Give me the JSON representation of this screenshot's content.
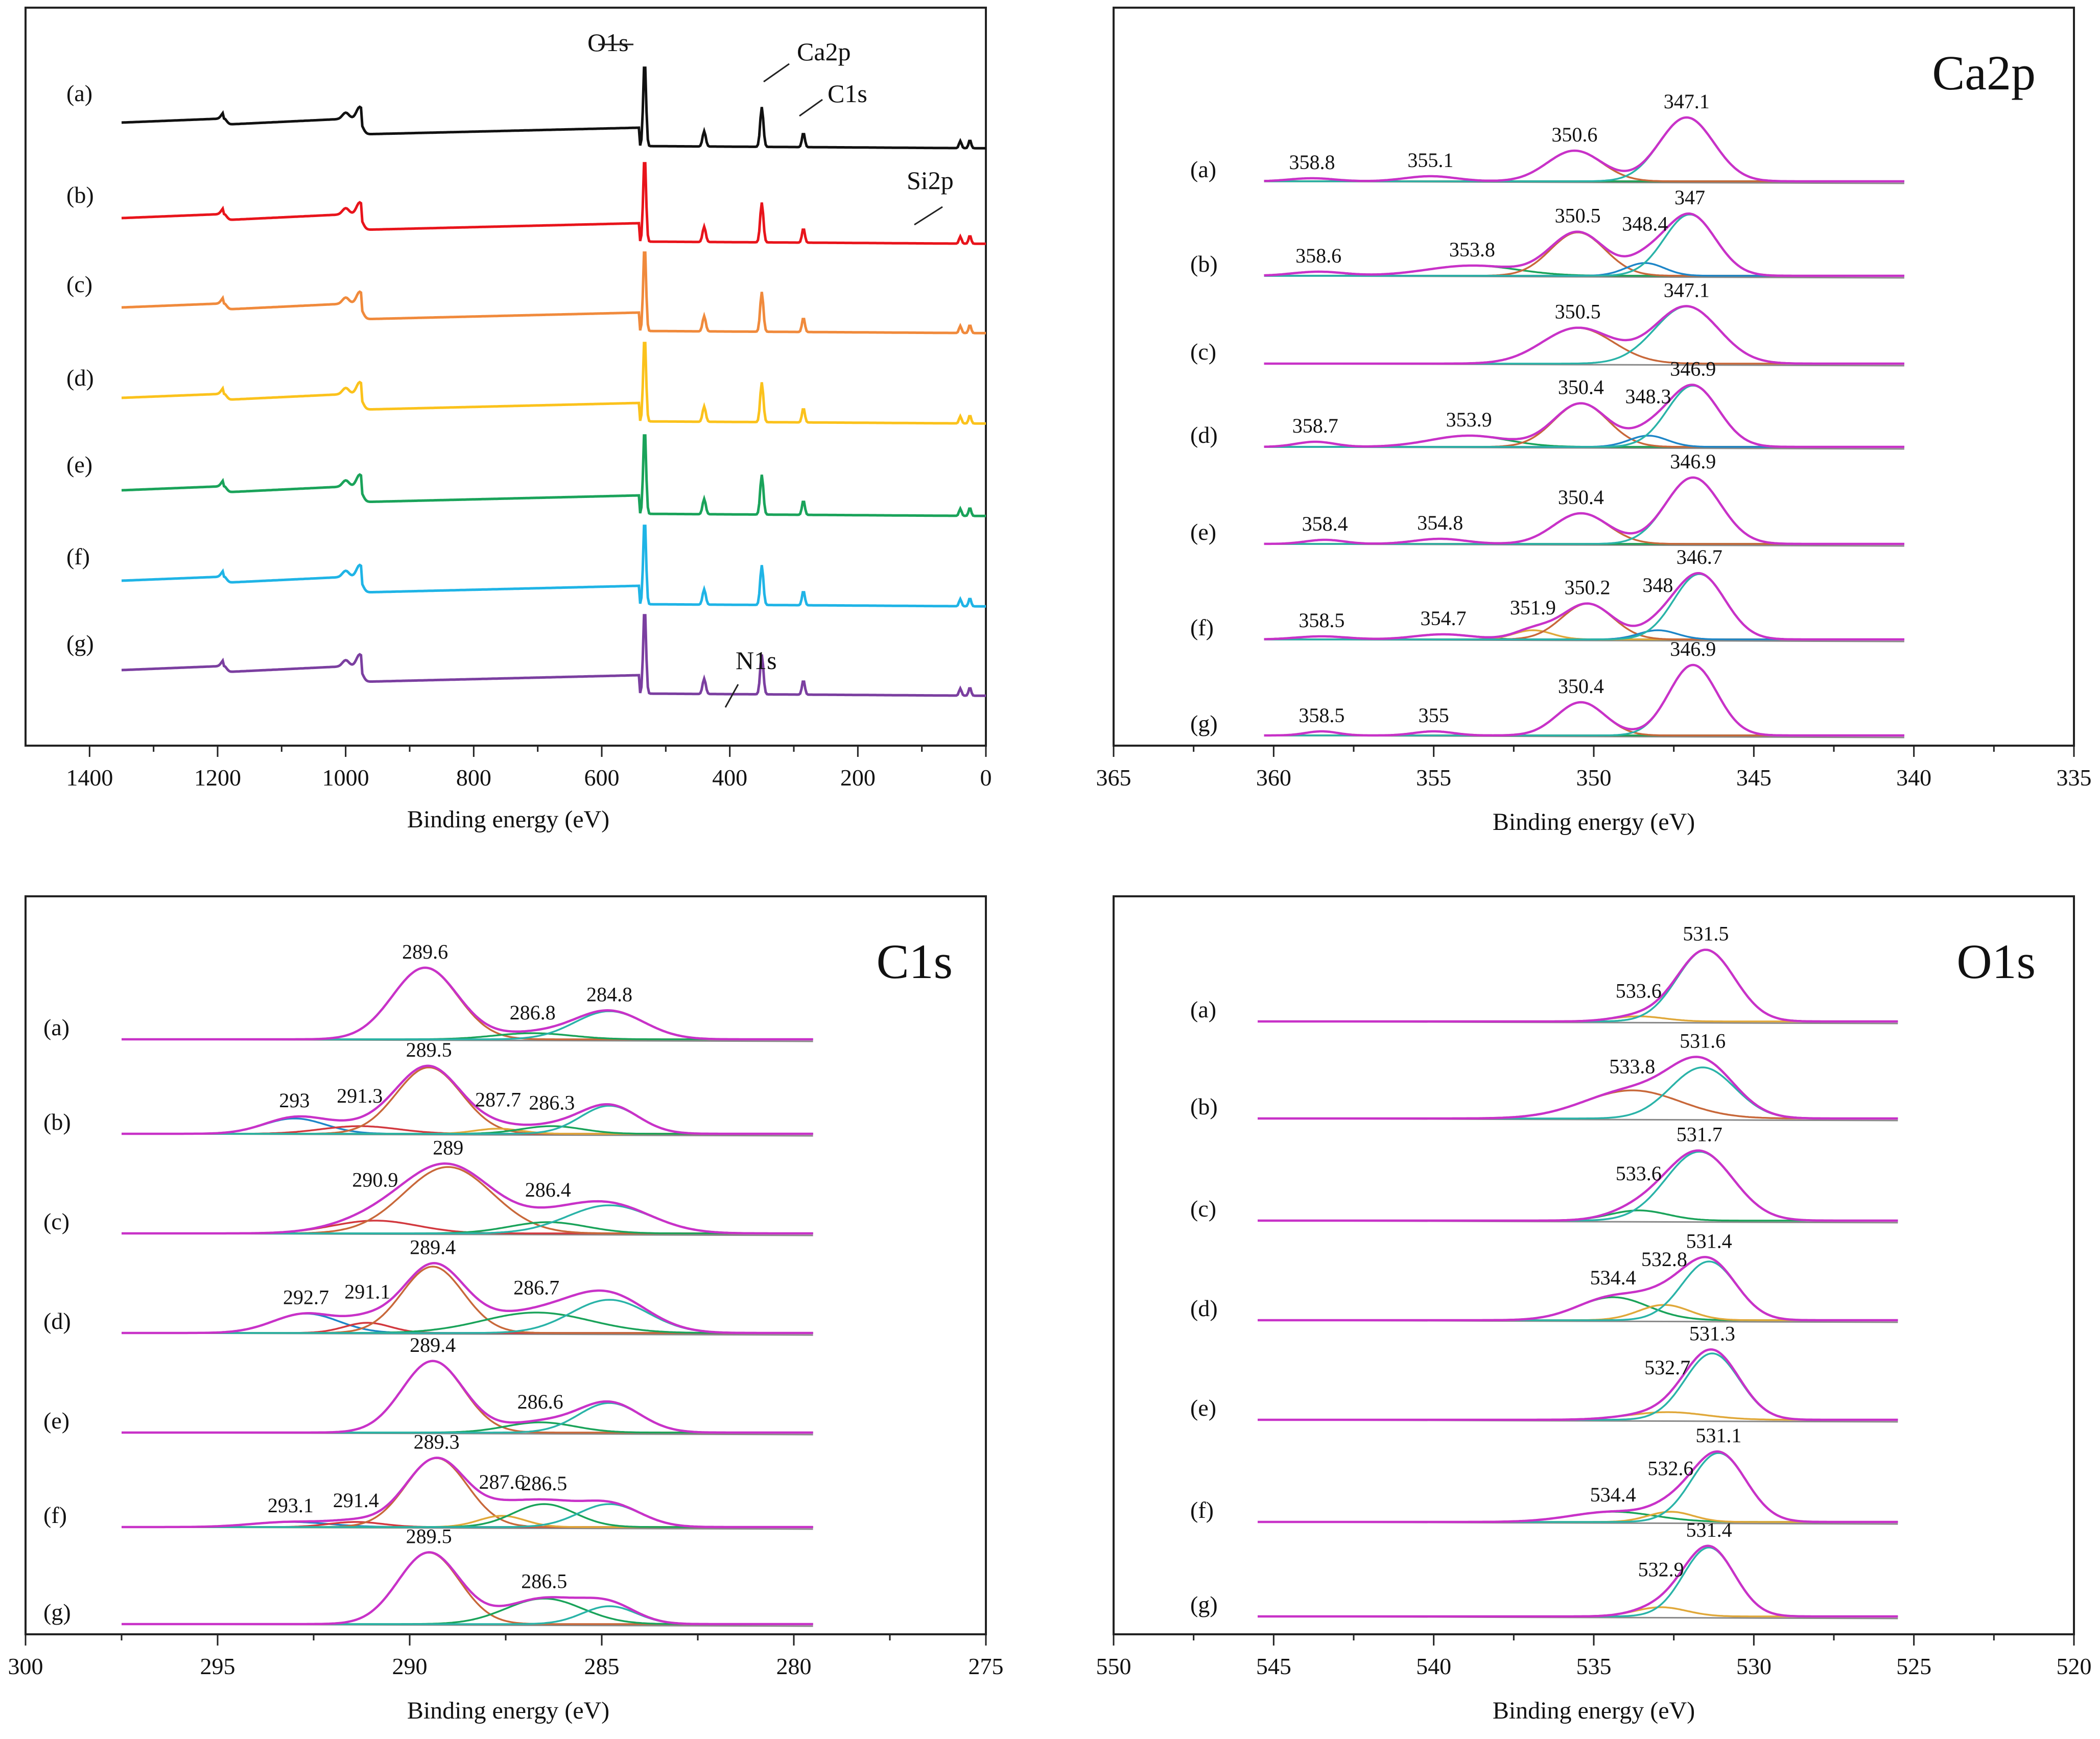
{
  "figure": {
    "xlabel": "Binding energy (eV)",
    "sample_labels": [
      "(a)",
      "(b)",
      "(c)",
      "(d)",
      "(e)",
      "(f)",
      "(g)"
    ],
    "curve_colors": {
      "black": "#111111",
      "red": "#e8141b",
      "orange": "#f08a3c",
      "yellow": "#fbc21c",
      "green": "#1aa35a",
      "cyan": "#1fb4e6",
      "purple": "#7b3fa0",
      "blue_fit": "#1e86c8",
      "env": "#c832c8",
      "brown": "#c8683a",
      "teal": "#2ab3a8",
      "darkred": "#d2393f",
      "gold": "#e0a83a",
      "gray": "#8a8a8a"
    }
  },
  "chart_data": [
    {
      "id": "survey",
      "type": "line",
      "title": "",
      "xlabel": "Binding energy (eV)",
      "xlim": [
        1500,
        0
      ],
      "xticks": [
        1400,
        1200,
        1000,
        800,
        600,
        400,
        200,
        0
      ],
      "series": [
        {
          "name": "(a)",
          "color": "#111111"
        },
        {
          "name": "(b)",
          "color": "#e8141b"
        },
        {
          "name": "(c)",
          "color": "#f08a3c"
        },
        {
          "name": "(d)",
          "color": "#fbc21c"
        },
        {
          "name": "(e)",
          "color": "#1aa35a"
        },
        {
          "name": "(f)",
          "color": "#1fb4e6"
        },
        {
          "name": "(g)",
          "color": "#7b3fa0"
        }
      ],
      "peaks_ev": [
        1190,
        1000,
        978,
        533,
        440,
        350,
        285,
        25
      ],
      "annotations": [
        {
          "text": "O1s",
          "x": 533
        },
        {
          "text": "Ca2p",
          "x": 350
        },
        {
          "text": "C1s",
          "x": 285
        },
        {
          "text": "Si2p",
          "x": 103
        },
        {
          "text": "N1s",
          "x": 400
        }
      ]
    },
    {
      "id": "ca2p",
      "type": "line",
      "title": "Ca2p",
      "xlabel": "Binding energy (eV)",
      "xlim": [
        365,
        335
      ],
      "xticks": [
        365,
        360,
        355,
        350,
        345,
        340,
        335
      ],
      "data_range": [
        360.3,
        340.3
      ],
      "rows": [
        {
          "label": "(a)",
          "peaks": [
            358.8,
            355.1,
            350.6,
            347.1
          ]
        },
        {
          "label": "(b)",
          "peaks": [
            358.6,
            353.8,
            350.5,
            348.4,
            347
          ]
        },
        {
          "label": "(c)",
          "peaks": [
            350.5,
            347.1
          ]
        },
        {
          "label": "(d)",
          "peaks": [
            358.7,
            353.9,
            350.4,
            348.3,
            346.9
          ]
        },
        {
          "label": "(e)",
          "peaks": [
            358.4,
            354.8,
            350.4,
            346.9
          ]
        },
        {
          "label": "(f)",
          "peaks": [
            358.5,
            354.7,
            351.9,
            350.2,
            348,
            346.7
          ]
        },
        {
          "label": "(g)",
          "peaks": [
            358.5,
            355,
            350.4,
            346.9
          ]
        }
      ]
    },
    {
      "id": "c1s",
      "type": "line",
      "title": "C1s",
      "xlabel": "Binding energy (eV)",
      "xlim": [
        300,
        275
      ],
      "xticks": [
        300,
        295,
        290,
        285,
        280,
        275
      ],
      "data_range": [
        297.5,
        279.5
      ],
      "rows": [
        {
          "label": "(a)",
          "peaks": [
            289.6,
            286.8,
            284.8
          ]
        },
        {
          "label": "(b)",
          "peaks": [
            293,
            291.3,
            289.5,
            287.7,
            286.3
          ]
        },
        {
          "label": "(c)",
          "peaks": [
            290.9,
            289,
            286.4
          ]
        },
        {
          "label": "(d)",
          "peaks": [
            292.7,
            291.1,
            289.4,
            286.7
          ]
        },
        {
          "label": "(e)",
          "peaks": [
            289.4,
            286.6
          ]
        },
        {
          "label": "(f)",
          "peaks": [
            293.1,
            291.4,
            289.3,
            287.6,
            286.5
          ]
        },
        {
          "label": "(g)",
          "peaks": [
            289.5,
            286.5
          ]
        }
      ]
    },
    {
      "id": "o1s",
      "type": "line",
      "title": "O1s",
      "xlabel": "Binding energy (eV)",
      "xlim": [
        550,
        520
      ],
      "xticks": [
        550,
        545,
        540,
        535,
        530,
        525,
        520
      ],
      "data_range": [
        545.5,
        525.5
      ],
      "rows": [
        {
          "label": "(a)",
          "peaks": [
            533.6,
            531.5
          ]
        },
        {
          "label": "(b)",
          "peaks": [
            533.8,
            531.6
          ]
        },
        {
          "label": "(c)",
          "peaks": [
            533.6,
            531.7
          ]
        },
        {
          "label": "(d)",
          "peaks": [
            534.4,
            532.8,
            531.4
          ]
        },
        {
          "label": "(e)",
          "peaks": [
            532.7,
            531.3
          ]
        },
        {
          "label": "(f)",
          "peaks": [
            534.4,
            532.6,
            531.1
          ]
        },
        {
          "label": "(g)",
          "peaks": [
            532.9,
            531.4
          ]
        }
      ]
    }
  ]
}
